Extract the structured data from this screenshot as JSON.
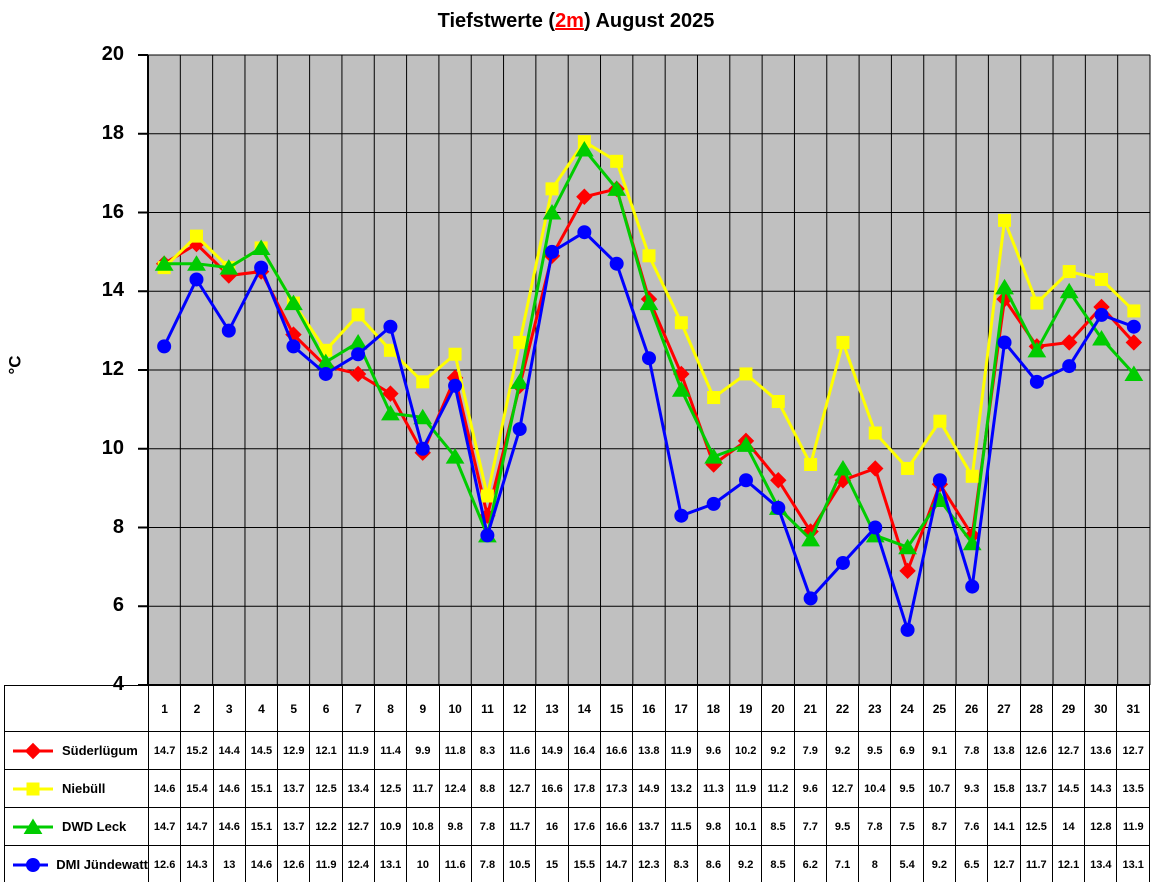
{
  "title": {
    "prefix": "Tiefstwerte (",
    "highlight": "2m",
    "suffix": ") August 2025",
    "highlight_color": "#ff0000"
  },
  "chart_data": {
    "type": "line",
    "title": "Tiefstwerte (2m) August 2025",
    "xlabel": "",
    "ylabel": "°C",
    "ylim": [
      4,
      20
    ],
    "yticks": [
      4,
      6,
      8,
      10,
      12,
      14,
      16,
      18,
      20
    ],
    "categories": [
      1,
      2,
      3,
      4,
      5,
      6,
      7,
      8,
      9,
      10,
      11,
      12,
      13,
      14,
      15,
      16,
      17,
      18,
      19,
      20,
      21,
      22,
      23,
      24,
      25,
      26,
      27,
      28,
      29,
      30,
      31
    ],
    "grid": true,
    "plot_background": "#c0c0c0",
    "gridline_color": "#000000",
    "legend_position": "bottom-left table",
    "series": [
      {
        "name": "Süderlügum",
        "slug": "suederluegum",
        "color": "#ff0000",
        "marker": "diamond",
        "values": [
          14.7,
          15.2,
          14.4,
          14.5,
          12.9,
          12.1,
          11.9,
          11.4,
          9.9,
          11.8,
          8.3,
          11.6,
          14.9,
          16.4,
          16.6,
          13.8,
          11.9,
          9.6,
          10.2,
          9.2,
          7.9,
          9.2,
          9.5,
          6.9,
          9.1,
          7.8,
          13.8,
          12.6,
          12.7,
          13.6,
          12.7
        ]
      },
      {
        "name": "Niebüll",
        "slug": "niebuell",
        "color": "#ffff00",
        "marker": "square",
        "values": [
          14.6,
          15.4,
          14.6,
          15.1,
          13.7,
          12.5,
          13.4,
          12.5,
          11.7,
          12.4,
          8.8,
          12.7,
          16.6,
          17.8,
          17.3,
          14.9,
          13.2,
          11.3,
          11.9,
          11.2,
          9.6,
          12.7,
          10.4,
          9.5,
          10.7,
          9.3,
          15.8,
          13.7,
          14.5,
          14.3,
          13.5
        ]
      },
      {
        "name": "DWD Leck",
        "slug": "dwd-leck",
        "color": "#00cc00",
        "marker": "triangle",
        "values": [
          14.7,
          14.7,
          14.6,
          15.1,
          13.7,
          12.2,
          12.7,
          10.9,
          10.8,
          9.8,
          7.8,
          11.7,
          16,
          17.6,
          16.6,
          13.7,
          11.5,
          9.8,
          10.1,
          8.5,
          7.7,
          9.5,
          7.8,
          7.5,
          8.7,
          7.6,
          14.1,
          12.5,
          14,
          12.8,
          11.9
        ]
      },
      {
        "name": "DMI Jündewatt",
        "slug": "dmi-juendewatt",
        "color": "#0000ff",
        "marker": "circle",
        "values": [
          12.6,
          14.3,
          13,
          14.6,
          12.6,
          11.9,
          12.4,
          13.1,
          10,
          11.6,
          7.8,
          10.5,
          15,
          15.5,
          14.7,
          12.3,
          8.3,
          8.6,
          9.2,
          8.5,
          6.2,
          7.1,
          8,
          5.4,
          9.2,
          6.5,
          12.7,
          11.7,
          12.1,
          13.4,
          13.1
        ]
      }
    ]
  }
}
